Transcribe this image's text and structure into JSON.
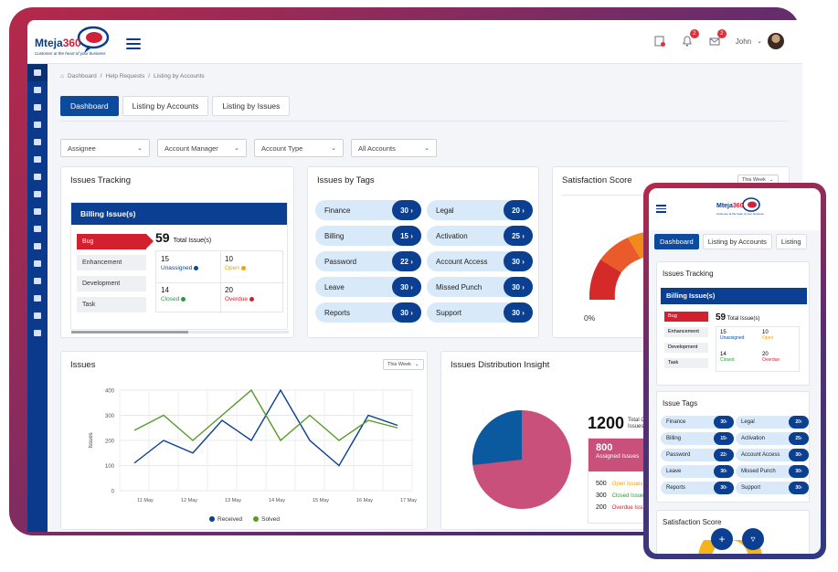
{
  "brand": {
    "name_a": "Mteja",
    "name_b": "360",
    "tagline": "Customer at the heart of your business"
  },
  "header": {
    "user_name": "John",
    "notification_count": "2",
    "message_count": "2"
  },
  "breadcrumb": [
    "Dashboard",
    "Help Requests",
    "Listing by Accounts"
  ],
  "tabs": [
    {
      "label": "Dashboard"
    },
    {
      "label": "Listing by Accounts"
    },
    {
      "label": "Listing by Issues"
    }
  ],
  "filters": [
    {
      "label": "Assignee"
    },
    {
      "label": "Account Manager"
    },
    {
      "label": "Account Type"
    },
    {
      "label": "All Accounts"
    }
  ],
  "issues_tracking": {
    "title": "Issues Tracking",
    "billing_title": "Billing Issue(s)",
    "categories": [
      "Bug",
      "Enhancement",
      "Development",
      "Task"
    ],
    "total": "59",
    "total_label": "Total Issue(s)",
    "stats": [
      {
        "value": "15",
        "label": "Unassigned",
        "color": "#0b4a9c"
      },
      {
        "value": "10",
        "label": "Open",
        "color": "#f0a500"
      },
      {
        "value": "14",
        "label": "Closed",
        "color": "#2e9a3a"
      },
      {
        "value": "20",
        "label": "Overdue",
        "color": "#d2202f"
      }
    ]
  },
  "issues_by_tags": {
    "title": "Issues by Tags",
    "tags": [
      {
        "label": "Finance",
        "count": "30"
      },
      {
        "label": "Legal",
        "count": "20"
      },
      {
        "label": "Billing",
        "count": "15"
      },
      {
        "label": "Activation",
        "count": "25"
      },
      {
        "label": "Password",
        "count": "22"
      },
      {
        "label": "Account Access",
        "count": "30"
      },
      {
        "label": "Leave",
        "count": "30"
      },
      {
        "label": "Missed Punch",
        "count": "30"
      },
      {
        "label": "Reports",
        "count": "30"
      },
      {
        "label": "Support",
        "count": "30"
      }
    ]
  },
  "satisfaction": {
    "title": "Satisfaction Score",
    "period": "This Week",
    "min_label": "0%"
  },
  "chart_data": {
    "type": "line",
    "title": "Issues",
    "period": "This Week",
    "ylabel": "Issues",
    "xlabel": "",
    "ylim": [
      0,
      400
    ],
    "yticks": [
      0,
      100,
      200,
      300,
      400
    ],
    "x": [
      0,
      1,
      2,
      3,
      4,
      5,
      6,
      7,
      8,
      9
    ],
    "xtick_labels": [
      "11 May",
      "12 May",
      "13 May",
      "14 May",
      "15 May",
      "16 May",
      "17 May"
    ],
    "xtick_positions": [
      1,
      2.5,
      4,
      5.5,
      7,
      8.5,
      10
    ],
    "series": [
      {
        "name": "Received",
        "color": "#0b3f91",
        "values": [
          110,
          200,
          150,
          280,
          200,
          400,
          200,
          100,
          300,
          260
        ]
      },
      {
        "name": "Solved",
        "color": "#5a9a2a",
        "values": [
          240,
          300,
          200,
          300,
          400,
          200,
          300,
          200,
          280,
          250
        ]
      }
    ]
  },
  "distribution": {
    "title": "Issues Distribution Insight",
    "total": "1200",
    "total_label": "Total Created Issues",
    "assigned_value": "800",
    "assigned_label": "Assigned Issues",
    "rows": [
      {
        "value": "500",
        "label": "Open Issues",
        "color": "#f0a500"
      },
      {
        "value": "300",
        "label": "Closed Issues",
        "color": "#2e9a3a"
      },
      {
        "value": "200",
        "label": "Overdue Issues",
        "color": "#d2202f"
      }
    ],
    "pie": [
      {
        "name": "Assigned",
        "value": 800,
        "color": "#c8507a"
      },
      {
        "name": "Unassigned",
        "value": 400,
        "color": "#0b5aa0"
      }
    ]
  },
  "mobile": {
    "tabs": [
      "Dashboard",
      "Listing by Accounts",
      "Listing"
    ],
    "issues_tracking": "Issues Tracking",
    "billing_title": "Billing Issue(s)",
    "issue_tags": "Issue Tags",
    "satisfaction": "Satisfaction Score"
  }
}
